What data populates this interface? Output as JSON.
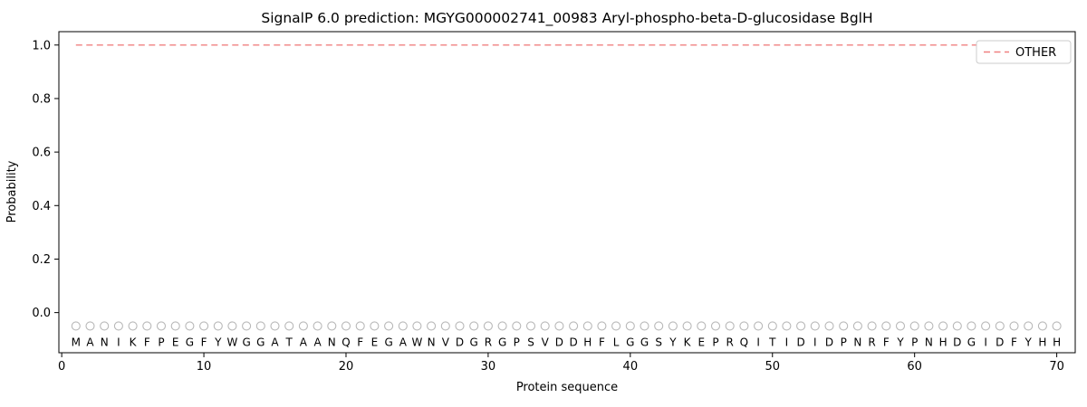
{
  "chart_data": {
    "type": "line",
    "title": "SignalP 6.0 prediction: MGYG000002741_00983 Aryl-phospho-beta-D-glucosidase BglH",
    "xlabel": "Protein sequence",
    "ylabel": "Probability",
    "xlim": [
      -0.2,
      71.3
    ],
    "ylim": [
      -0.15,
      1.05
    ],
    "xticks": [
      0,
      10,
      20,
      30,
      40,
      50,
      60,
      70
    ],
    "xtick_labels": [
      "0",
      "10",
      "20",
      "30",
      "40",
      "50",
      "60",
      "70"
    ],
    "yticks": [
      0.0,
      0.2,
      0.4,
      0.6,
      0.8,
      1.0
    ],
    "ytick_labels": [
      "0.0",
      "0.2",
      "0.4",
      "0.6",
      "0.8",
      "1.0"
    ],
    "grid": false,
    "x_start": 1,
    "sequence": "MANIKFPEGFYWGGATAANQFEGAWNVDGRGPSVDDHFLGGSYKEPRQITIDIDPNRFYPNHDGIDFYHH",
    "marker_y": -0.05,
    "letter_y": -0.125,
    "marker_color": "#b8b8b8",
    "letter_color": "#3c3c3c",
    "series": [
      {
        "name": "OTHER",
        "color": "#f08080",
        "style": "dashed",
        "values": [
          1,
          1,
          1,
          1,
          1,
          1,
          1,
          1,
          1,
          1,
          1,
          1,
          1,
          1,
          1,
          1,
          1,
          1,
          1,
          1,
          1,
          1,
          1,
          1,
          1,
          1,
          1,
          1,
          1,
          1,
          1,
          1,
          1,
          1,
          1,
          1,
          1,
          1,
          1,
          1,
          1,
          1,
          1,
          1,
          1,
          1,
          1,
          1,
          1,
          1,
          1,
          1,
          1,
          1,
          1,
          1,
          1,
          1,
          1,
          1,
          1,
          1,
          1,
          1,
          1,
          1,
          1,
          1,
          1,
          1
        ]
      }
    ],
    "legend": {
      "label": "OTHER",
      "position": "upper right"
    }
  }
}
